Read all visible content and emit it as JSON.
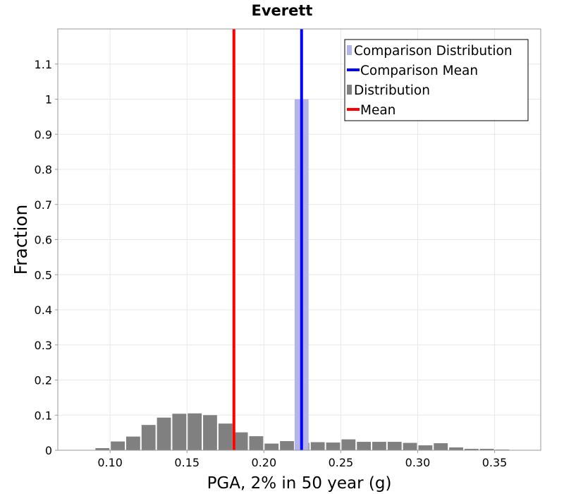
{
  "chart_data": {
    "type": "bar",
    "title": "Everett",
    "xlabel": "PGA, 2% in 50 year (g)",
    "ylabel": "Fraction",
    "xlim": [
      0.066,
      0.38
    ],
    "ylim": [
      0,
      1.2
    ],
    "x_ticks": [
      "0.10",
      "0.15",
      "0.20",
      "0.25",
      "0.30",
      "0.35"
    ],
    "y_ticks": [
      "0",
      "0.1",
      "0.2",
      "0.3",
      "0.4",
      "0.5",
      "0.6",
      "0.7",
      "0.8",
      "0.9",
      "1",
      "1.1"
    ],
    "grid": true,
    "bin_width": 0.01,
    "legend_position": "top-right",
    "legend": [
      {
        "label": "Comparison Distribution",
        "kind": "box",
        "color": "#b4b4e8"
      },
      {
        "label": "Comparison Mean",
        "kind": "line",
        "color": "#0000ff"
      },
      {
        "label": "Distribution",
        "kind": "box",
        "color": "#808080"
      },
      {
        "label": "Mean",
        "kind": "line",
        "color": "#ff0000"
      }
    ],
    "series": [
      {
        "name": "Distribution",
        "color": "#808080",
        "x": [
          0.095,
          0.105,
          0.115,
          0.125,
          0.135,
          0.145,
          0.155,
          0.165,
          0.175,
          0.185,
          0.195,
          0.205,
          0.215,
          0.225,
          0.235,
          0.245,
          0.255,
          0.265,
          0.275,
          0.285,
          0.295,
          0.305,
          0.315,
          0.325,
          0.335,
          0.345,
          0.355,
          0.365
        ],
        "values": [
          0.006,
          0.025,
          0.039,
          0.072,
          0.093,
          0.104,
          0.105,
          0.1,
          0.076,
          0.051,
          0.04,
          0.019,
          0.026,
          0.021,
          0.023,
          0.022,
          0.031,
          0.024,
          0.024,
          0.024,
          0.021,
          0.014,
          0.02,
          0.008,
          0.004,
          0.004,
          0.002,
          0.001
        ]
      },
      {
        "name": "Comparison Distribution",
        "color": "#b4b4e8",
        "x": [
          0.2245
        ],
        "values": [
          1.0
        ]
      }
    ],
    "means": [
      {
        "name": "Mean",
        "x": 0.1805,
        "color": "#ff0000"
      },
      {
        "name": "Comparison Mean",
        "x": 0.2245,
        "color": "#0000ff"
      }
    ]
  }
}
